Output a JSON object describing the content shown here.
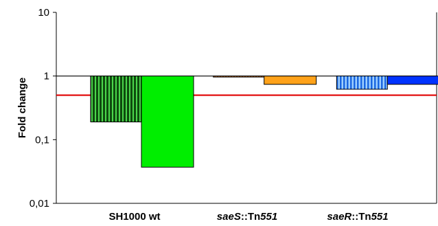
{
  "chart_data": {
    "type": "bar",
    "ylabel": "Fold change",
    "yscale": "log",
    "ylim": [
      0.01,
      10
    ],
    "yticks": [
      "0,01",
      "0,1",
      "1",
      "10"
    ],
    "ytick_values": [
      0.01,
      0.1,
      1,
      10
    ],
    "categories": [
      {
        "parts": [
          {
            "text": "SH1000 wt",
            "italic": false
          }
        ]
      },
      {
        "parts": [
          {
            "text": "saeS",
            "italic": true
          },
          {
            "text": "::Tn",
            "italic": false
          },
          {
            "text": "551",
            "italic": true
          }
        ]
      },
      {
        "parts": [
          {
            "text": "saeR",
            "italic": true
          },
          {
            "text": "::Tn",
            "italic": false
          },
          {
            "text": "551",
            "italic": true
          }
        ]
      }
    ],
    "bars": [
      {
        "category": 0,
        "slot": 0,
        "value": 0.19,
        "color": "#1e6b1e",
        "pattern": "stripes"
      },
      {
        "category": 0,
        "slot": 1,
        "value": 0.037,
        "color": "#00ee00",
        "pattern": "none"
      },
      {
        "category": 1,
        "slot": 0,
        "value": 0.97,
        "color": "#e87722",
        "pattern": "stripes"
      },
      {
        "category": 1,
        "slot": 1,
        "value": 0.74,
        "color": "#ffa21a",
        "pattern": "none"
      },
      {
        "category": 2,
        "slot": 0,
        "value": 0.62,
        "color": "#3399ff",
        "pattern": "stripes"
      },
      {
        "category": 2,
        "slot": 1,
        "value": 0.74,
        "color": "#0033ff",
        "pattern": "none"
      }
    ],
    "reference_lines": [
      {
        "value": 1,
        "color": "#000000"
      },
      {
        "value": 0.5,
        "color": "#e00000"
      }
    ],
    "grid": false,
    "legend": "none"
  }
}
